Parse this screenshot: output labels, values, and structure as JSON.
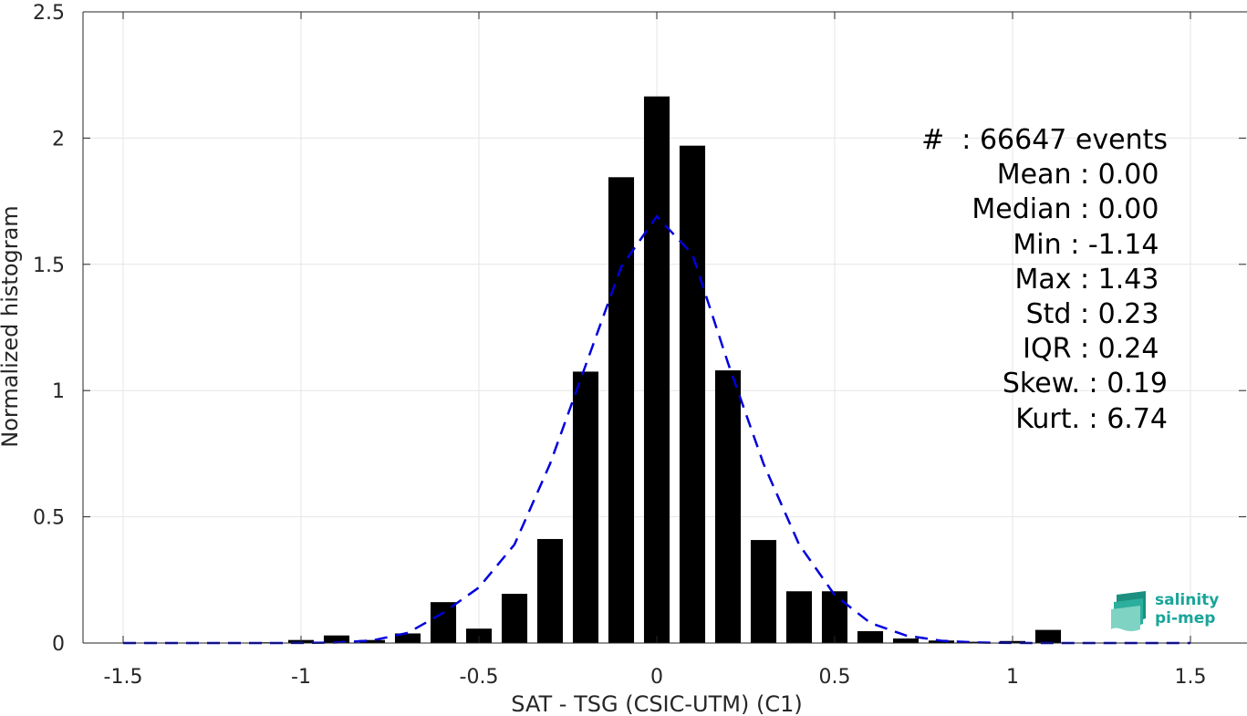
{
  "chart_data": {
    "type": "bar",
    "xlabel": "SAT - TSG (CSIC-UTM) (C1)",
    "ylabel": "Normalized histogram",
    "xlim": [
      -1.5,
      1.5
    ],
    "ylim": [
      0,
      2.5
    ],
    "xticks": [
      "-1.5",
      "-1",
      "-0.5",
      "0",
      "0.5",
      "1",
      "1.5"
    ],
    "xtick_values": [
      -1.5,
      -1,
      -0.5,
      0,
      0.5,
      1,
      1.5
    ],
    "yticks": [
      "0",
      "0.5",
      "1",
      "1.5",
      "2",
      "2.5"
    ],
    "ytick_values": [
      0,
      0.5,
      1,
      1.5,
      2,
      2.5
    ],
    "grid": true,
    "bar_color": "#000000",
    "bins": [
      -1.1,
      -1.0,
      -0.9,
      -0.8,
      -0.7,
      -0.6,
      -0.5,
      -0.4,
      -0.3,
      -0.2,
      -0.1,
      0.0,
      0.1,
      0.2,
      0.3,
      0.4,
      0.5,
      0.6,
      0.7,
      0.8,
      0.9,
      1.0,
      1.1
    ],
    "values": [
      0.003,
      0.012,
      0.03,
      0.012,
      0.038,
      0.162,
      0.057,
      0.195,
      0.412,
      1.075,
      1.845,
      2.165,
      1.97,
      1.08,
      0.408,
      0.205,
      0.205,
      0.047,
      0.018,
      0.01,
      0.005,
      0.008,
      0.052
    ],
    "fit": {
      "style": "dashed",
      "color": "#0000dd",
      "x": [
        -1.5,
        -1.4,
        -1.3,
        -1.2,
        -1.1,
        -1.0,
        -0.9,
        -0.8,
        -0.7,
        -0.6,
        -0.5,
        -0.4,
        -0.3,
        -0.2,
        -0.1,
        0.0,
        0.1,
        0.2,
        0.3,
        0.4,
        0.5,
        0.6,
        0.7,
        0.8,
        0.9,
        1.0,
        1.1,
        1.2,
        1.3,
        1.4,
        1.5
      ],
      "y": [
        0,
        0,
        0,
        0,
        0,
        0.0003,
        0.002,
        0.01,
        0.04,
        0.12,
        0.22,
        0.39,
        0.71,
        1.1,
        1.49,
        1.69,
        1.54,
        1.11,
        0.71,
        0.39,
        0.19,
        0.08,
        0.03,
        0.009,
        0.002,
        0.0005,
        0,
        0,
        0,
        0,
        0
      ]
    }
  },
  "stats": [
    "#  : 66647 events",
    "Mean : 0.00 ",
    "Median : 0.00 ",
    "Min : -1.14 ",
    "Max : 1.43 ",
    "Std : 0.23 ",
    "IQR : 0.24 ",
    "Skew. : 0.19",
    "Kurt. : 6.74"
  ],
  "logo": {
    "line1": "salinity",
    "line2": "pi-mep",
    "color": "#1aa59a"
  }
}
